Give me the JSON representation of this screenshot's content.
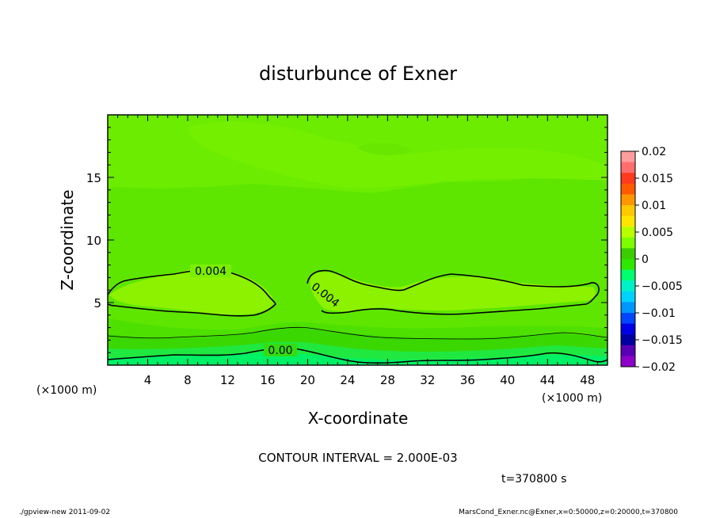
{
  "chart_data": {
    "type": "heatmap",
    "title": "disturbunce of Exner",
    "xlabel": "X-coordinate",
    "ylabel": "Z-coordinate",
    "x_unit": "(×1000 m)",
    "y_unit": "(×1000 m)",
    "xlim": [
      0,
      50
    ],
    "ylim": [
      0,
      20
    ],
    "x_ticks": [
      4,
      8,
      12,
      16,
      20,
      24,
      28,
      32,
      36,
      40,
      44,
      48
    ],
    "y_ticks": [
      5,
      10,
      15
    ],
    "colorbar": {
      "levels": [
        0.02,
        0.015,
        0.01,
        0.005,
        0,
        -0.005,
        -0.01,
        -0.015,
        -0.02
      ],
      "labels": [
        "0.02",
        "0.015",
        "0.01",
        "0.005",
        "0",
        "−0.005",
        "−0.01",
        "−0.015",
        "−0.02"
      ],
      "colors": [
        "#ff9c9c",
        "#ff6e6e",
        "#ff3a1e",
        "#ff5a00",
        "#ff9600",
        "#ffc800",
        "#ffe600",
        "#b8ff00",
        "#7dff00",
        "#3ccd00",
        "#2ee800",
        "#00ff6e",
        "#00f0c8",
        "#00d2ff",
        "#0096ff",
        "#0046ff",
        "#0000e6",
        "#0000a0",
        "#5a00b4",
        "#8c00c8"
      ]
    },
    "contour_labels": [
      "0.004",
      "0.004",
      "0.00"
    ],
    "contour_interval_text": "CONTOUR INTERVAL = 2.000E-03",
    "time_text": "t=370800 s"
  },
  "footer": {
    "left": "./gpview-new   2011-09-02",
    "right": "MarsCond_Exner.nc@Exner,x=0:50000,z=0:20000,t=370800"
  }
}
